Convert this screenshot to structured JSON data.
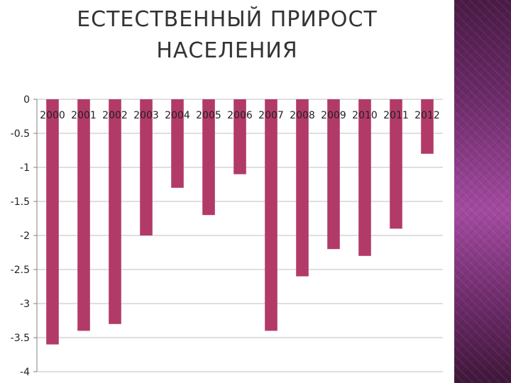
{
  "slide": {
    "title_line1": "ЕСТЕСТВЕННЫЙ ПРИРОСТ",
    "title_line2": "НАСЕЛЕНИЯ"
  },
  "colors": {
    "bar": "#b23a68",
    "gridline": "#bfbfbf",
    "axis": "#808080",
    "side_panel": "#6b2a68"
  },
  "chart_data": {
    "type": "bar",
    "categories": [
      "2000",
      "2001",
      "2002",
      "2003",
      "2004",
      "2005",
      "2006",
      "2007",
      "2008",
      "2009",
      "2010",
      "2011",
      "2012"
    ],
    "values": [
      -3.6,
      -3.4,
      -3.3,
      -2.0,
      -1.3,
      -1.7,
      -1.1,
      -3.4,
      -2.6,
      -2.2,
      -2.3,
      -1.9,
      -0.8
    ],
    "y_ticks": [
      "0",
      "-0.5",
      "-1",
      "-1.5",
      "-2",
      "-2.5",
      "-3",
      "-3.5",
      "-4"
    ],
    "ylim": [
      -4,
      0
    ],
    "grid": true,
    "category_labels_position": "below zero line"
  }
}
